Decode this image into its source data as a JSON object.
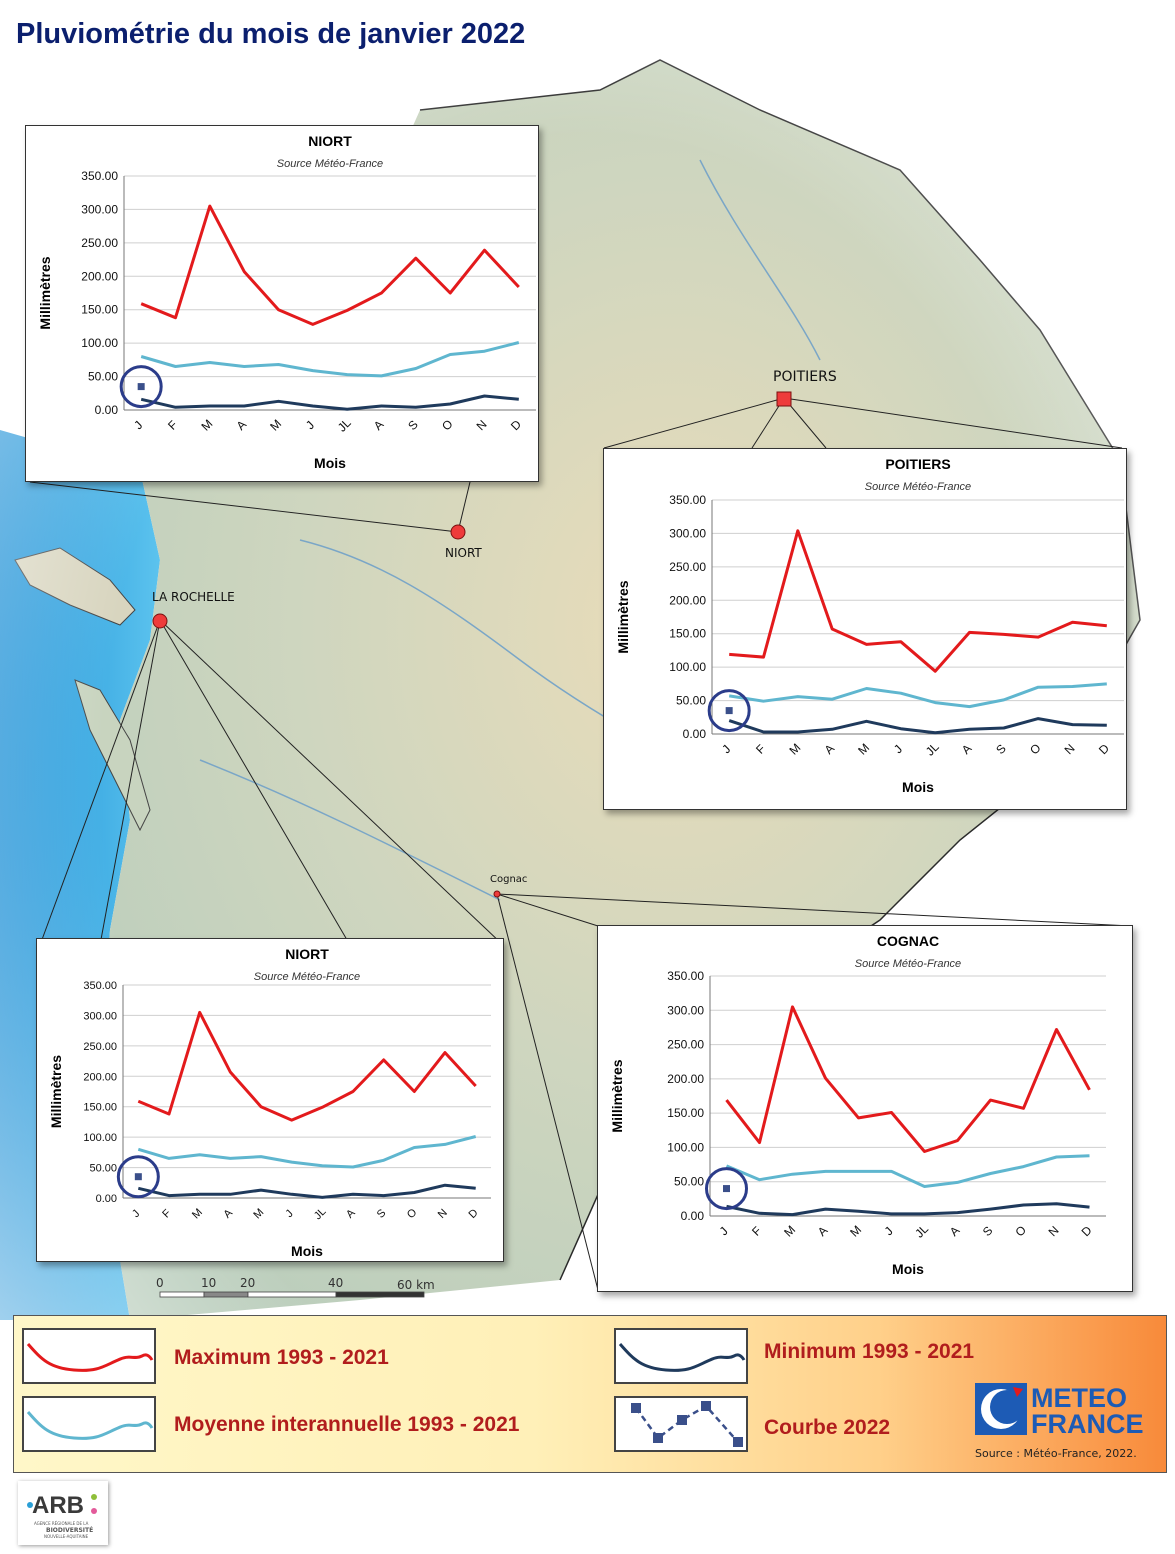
{
  "title": "Pluviométrie du mois de janvier 2022",
  "cities": {
    "niort": "NIORT",
    "poitiers": "POITIERS",
    "la_rochelle": "LA ROCHELLE",
    "cognac": "Cognac"
  },
  "months": [
    "J",
    "F",
    "M",
    "A",
    "M",
    "J",
    "JL",
    "A",
    "S",
    "O",
    "N",
    "D"
  ],
  "colors": {
    "maximum": "#e31a1c",
    "moyenne": "#5fb6cf",
    "minimum": "#1f3a5c",
    "courbe_2022": "#3a4f8a",
    "marker_ring": "#2b3c8a"
  },
  "chart_data": [
    {
      "id": "chart-niort-top",
      "type": "line",
      "title": "NIORT",
      "subtitle": "Source Météo-France",
      "xlabel": "Mois",
      "ylabel": "Millimètres",
      "ylim": [
        0,
        350
      ],
      "ytick_labels": [
        "0.00",
        "50.00",
        "100.00",
        "150.00",
        "200.00",
        "250.00",
        "300.00",
        "350.00"
      ],
      "grid": true,
      "categories": [
        "J",
        "F",
        "M",
        "A",
        "M",
        "J",
        "JL",
        "A",
        "S",
        "O",
        "N",
        "D"
      ],
      "series": [
        {
          "name": "Maximum 1993 - 2021",
          "color": "#e31a1c",
          "values": [
            159,
            138,
            305,
            207,
            150,
            128,
            149,
            175,
            227,
            175,
            239,
            184
          ]
        },
        {
          "name": "Moyenne interannuelle 1993 - 2021",
          "color": "#5fb6cf",
          "values": [
            80,
            65,
            71,
            65,
            68,
            59,
            53,
            51,
            62,
            83,
            88,
            101
          ]
        },
        {
          "name": "Minimum 1993 - 2021",
          "color": "#1f3a5c",
          "values": [
            16,
            4,
            6,
            6,
            13,
            6,
            1,
            6,
            4,
            9,
            21,
            16
          ]
        }
      ],
      "point_2022": {
        "x": "J",
        "y": 35
      }
    },
    {
      "id": "chart-poitiers",
      "type": "line",
      "title": "POITIERS",
      "subtitle": "Source Météo-France",
      "xlabel": "Mois",
      "ylabel": "Millimètres",
      "ylim": [
        0,
        350
      ],
      "ytick_labels": [
        "0.00",
        "50.00",
        "100.00",
        "150.00",
        "200.00",
        "250.00",
        "300.00",
        "350.00"
      ],
      "grid": true,
      "categories": [
        "J",
        "F",
        "M",
        "A",
        "M",
        "J",
        "JL",
        "A",
        "S",
        "O",
        "N",
        "D"
      ],
      "series": [
        {
          "name": "Maximum 1993 - 2021",
          "color": "#e31a1c",
          "values": [
            119,
            115,
            304,
            157,
            134,
            138,
            94,
            152,
            149,
            145,
            167,
            162
          ]
        },
        {
          "name": "Moyenne interannuelle 1993 - 2021",
          "color": "#5fb6cf",
          "values": [
            57,
            49,
            56,
            52,
            68,
            61,
            47,
            41,
            51,
            70,
            71,
            75
          ]
        },
        {
          "name": "Minimum 1993 - 2021",
          "color": "#1f3a5c",
          "values": [
            20,
            3,
            3,
            7,
            19,
            8,
            2,
            7,
            9,
            23,
            14,
            13
          ]
        }
      ],
      "point_2022": {
        "x": "J",
        "y": 35
      }
    },
    {
      "id": "chart-niort-bottom",
      "type": "line",
      "title": "NIORT",
      "subtitle": "Source Météo-France",
      "xlabel": "Mois",
      "ylabel": "Millimètres",
      "ylim": [
        0,
        350
      ],
      "ytick_labels": [
        "0.00",
        "50.00",
        "100.00",
        "150.00",
        "200.00",
        "250.00",
        "300.00",
        "350.00"
      ],
      "grid": true,
      "categories": [
        "J",
        "F",
        "M",
        "A",
        "M",
        "J",
        "JL",
        "A",
        "S",
        "O",
        "N",
        "D"
      ],
      "series": [
        {
          "name": "Maximum 1993 - 2021",
          "color": "#e31a1c",
          "values": [
            159,
            138,
            305,
            207,
            150,
            128,
            149,
            175,
            227,
            175,
            239,
            184
          ]
        },
        {
          "name": "Moyenne interannuelle 1993 - 2021",
          "color": "#5fb6cf",
          "values": [
            80,
            65,
            71,
            65,
            68,
            59,
            53,
            51,
            62,
            83,
            88,
            101
          ]
        },
        {
          "name": "Minimum 1993 - 2021",
          "color": "#1f3a5c",
          "values": [
            16,
            4,
            6,
            6,
            13,
            6,
            1,
            6,
            4,
            9,
            21,
            16
          ]
        }
      ],
      "point_2022": {
        "x": "J",
        "y": 35
      }
    },
    {
      "id": "chart-cognac",
      "type": "line",
      "title": "COGNAC",
      "subtitle": "Source Météo-France",
      "xlabel": "Mois",
      "ylabel": "Millimètres",
      "ylim": [
        0,
        350
      ],
      "ytick_labels": [
        "0.00",
        "50.00",
        "100.00",
        "150.00",
        "200.00",
        "250.00",
        "300.00",
        "350.00"
      ],
      "grid": true,
      "categories": [
        "J",
        "F",
        "M",
        "A",
        "M",
        "J",
        "JL",
        "A",
        "S",
        "O",
        "N",
        "D"
      ],
      "series": [
        {
          "name": "Maximum 1993 - 2021",
          "color": "#e31a1c",
          "values": [
            169,
            107,
            305,
            201,
            143,
            151,
            94,
            110,
            169,
            157,
            272,
            184
          ]
        },
        {
          "name": "Moyenne interannuelle 1993 - 2021",
          "color": "#5fb6cf",
          "values": [
            73,
            53,
            61,
            65,
            65,
            65,
            43,
            49,
            62,
            72,
            86,
            88
          ]
        },
        {
          "name": "Minimum 1993 - 2021",
          "color": "#1f3a5c",
          "values": [
            14,
            4,
            2,
            10,
            7,
            3,
            3,
            5,
            10,
            16,
            18,
            13
          ]
        }
      ],
      "point_2022": {
        "x": "J",
        "y": 40
      }
    }
  ],
  "scale": {
    "ticks": [
      "0",
      "10",
      "20",
      "40"
    ],
    "end_label": "60 km"
  },
  "legend": {
    "maximum": "Maximum 1993 - 2021",
    "moyenne": "Moyenne interannuelle 1993 - 2021",
    "minimum": "Minimum 1993 - 2021",
    "courbe": "Courbe 2022"
  },
  "logo": {
    "text_top": "METEO",
    "text_bottom": "FRANCE",
    "brand_blue": "#1d5bb5"
  },
  "source": "Source : Météo-France, 2022.",
  "arb_logo": {
    "acronym": "ARB",
    "subtitle_line1": "AGENCE RÉGIONALE DE LA",
    "subtitle_line2": "BIODIVERSITÉ",
    "subtitle_line3": "NOUVELLE-AQUITAINE"
  }
}
